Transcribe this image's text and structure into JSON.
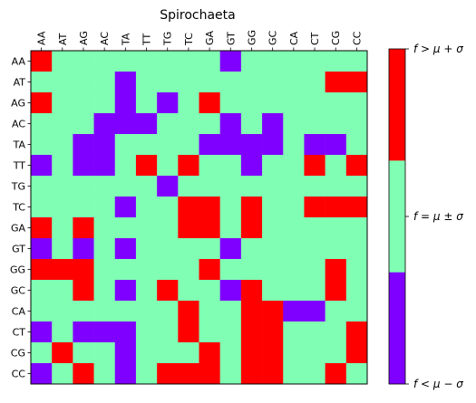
{
  "chart_data": {
    "type": "heatmap",
    "title": "Spirochaeta",
    "x_categories": [
      "AA",
      "AT",
      "AG",
      "AC",
      "TA",
      "TT",
      "TG",
      "TC",
      "GA",
      "GT",
      "GG",
      "GC",
      "CA",
      "CT",
      "CG",
      "CC"
    ],
    "y_categories": [
      "AA",
      "AT",
      "AG",
      "AC",
      "TA",
      "TT",
      "TG",
      "TC",
      "GA",
      "GT",
      "GG",
      "GC",
      "CA",
      "CT",
      "CG",
      "CC"
    ],
    "levels": {
      "low": {
        "code": 0,
        "color": "#8000ff"
      },
      "mid": {
        "code": 1,
        "color": "#80ffb4"
      },
      "high": {
        "code": 2,
        "color": "#ff0000"
      }
    },
    "matrix": [
      [
        2,
        1,
        1,
        1,
        1,
        1,
        1,
        1,
        1,
        0,
        1,
        1,
        1,
        1,
        1,
        1
      ],
      [
        1,
        1,
        1,
        1,
        0,
        1,
        1,
        1,
        1,
        1,
        1,
        1,
        1,
        1,
        2,
        2
      ],
      [
        2,
        1,
        1,
        1,
        0,
        1,
        0,
        1,
        2,
        1,
        1,
        1,
        1,
        1,
        1,
        1
      ],
      [
        1,
        1,
        1,
        0,
        0,
        0,
        1,
        1,
        1,
        0,
        1,
        0,
        1,
        1,
        1,
        1
      ],
      [
        1,
        1,
        0,
        0,
        1,
        1,
        1,
        1,
        0,
        0,
        0,
        0,
        1,
        0,
        0,
        1
      ],
      [
        0,
        1,
        0,
        0,
        1,
        2,
        1,
        2,
        1,
        1,
        0,
        1,
        1,
        2,
        1,
        2
      ],
      [
        1,
        1,
        1,
        1,
        1,
        1,
        0,
        1,
        1,
        1,
        1,
        1,
        1,
        1,
        1,
        1
      ],
      [
        1,
        1,
        1,
        1,
        0,
        1,
        1,
        2,
        2,
        1,
        2,
        1,
        1,
        2,
        2,
        2
      ],
      [
        2,
        1,
        2,
        1,
        1,
        1,
        1,
        2,
        2,
        1,
        2,
        1,
        1,
        1,
        1,
        1
      ],
      [
        0,
        1,
        0,
        1,
        0,
        1,
        1,
        1,
        1,
        0,
        1,
        1,
        1,
        1,
        1,
        1
      ],
      [
        2,
        2,
        2,
        1,
        1,
        1,
        1,
        1,
        2,
        1,
        1,
        1,
        1,
        1,
        2,
        1
      ],
      [
        1,
        1,
        2,
        1,
        0,
        1,
        2,
        1,
        1,
        0,
        2,
        1,
        1,
        1,
        2,
        1
      ],
      [
        1,
        1,
        1,
        1,
        1,
        1,
        1,
        2,
        1,
        1,
        2,
        2,
        0,
        0,
        1,
        1
      ],
      [
        0,
        1,
        0,
        0,
        0,
        1,
        1,
        2,
        1,
        1,
        2,
        2,
        1,
        1,
        1,
        2
      ],
      [
        1,
        2,
        1,
        1,
        0,
        1,
        1,
        1,
        2,
        1,
        2,
        2,
        1,
        1,
        1,
        2
      ],
      [
        0,
        1,
        2,
        1,
        0,
        1,
        2,
        2,
        2,
        1,
        2,
        2,
        1,
        1,
        2,
        1
      ]
    ],
    "colorbar": {
      "labels": [
        "f < μ − σ",
        "f = μ ± σ",
        "f > μ + σ"
      ]
    }
  }
}
